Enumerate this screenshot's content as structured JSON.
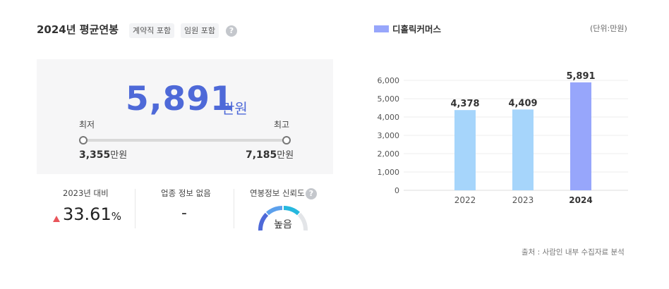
{
  "header": {
    "title": "2024년 평균연봉",
    "tags": [
      "계약직 포함",
      "임원 포함"
    ],
    "help": "?"
  },
  "salary": {
    "average": "5,891",
    "average_unit": "만원",
    "min_label": "최저",
    "max_label": "최고",
    "min_value": "3,355",
    "max_value": "7,185",
    "value_unit": "만원"
  },
  "stats": {
    "growth_label": "2023년 대비",
    "growth_value": "33.61",
    "growth_unit": "%",
    "industry_label": "업종 정보 없음",
    "industry_value": "-",
    "reliability_label": "연봉정보 신뢰도",
    "reliability_value": "높음",
    "help": "?"
  },
  "chart": {
    "legend": "디홀릭커머스",
    "unit_note": "(단위:만원)",
    "source": "출처 : 사람인 내부 수집자료 분석"
  },
  "colors": {
    "accent": "#4e69d8",
    "bar_prev": "#a6d5fb",
    "bar_current": "#97a6fb",
    "up_arrow": "#e9555b"
  },
  "chart_data": {
    "type": "bar",
    "categories": [
      "2022",
      "2023",
      "2024"
    ],
    "values": [
      4378,
      4409,
      5891
    ],
    "value_labels": [
      "4,378",
      "4,409",
      "5,891"
    ],
    "yticks": [
      "0",
      "1,000",
      "2,000",
      "3,000",
      "4,000",
      "5,000",
      "6,000"
    ],
    "ylim": [
      0,
      6000
    ],
    "grid": true,
    "title": "",
    "xlabel": "",
    "ylabel": ""
  }
}
